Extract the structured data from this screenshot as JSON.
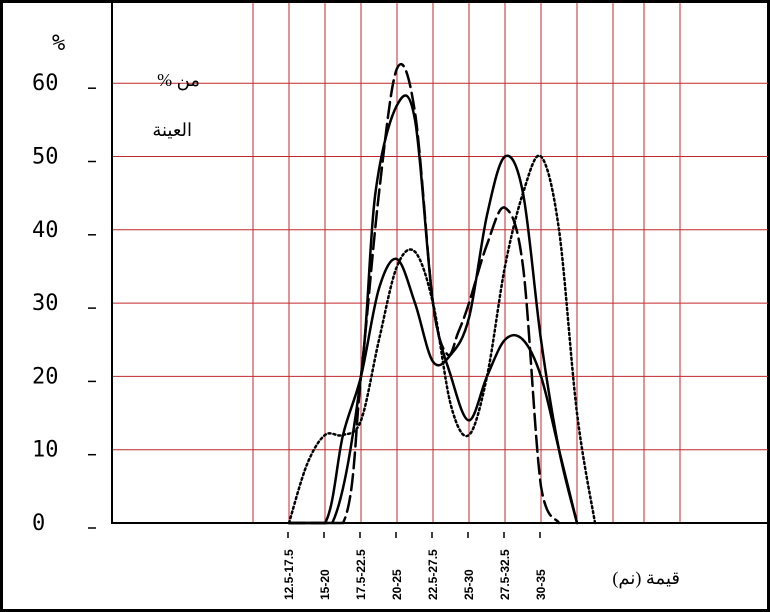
{
  "chart_data": {
    "type": "line",
    "x_categories": [
      "12.5-17.5",
      "15-20",
      "17.5-22.5",
      "20-25",
      "22.5-27.5",
      "25-30",
      "27.5-32.5",
      "30-35"
    ],
    "y_unit": "%",
    "y_ticks": [
      0,
      10,
      20,
      30,
      40,
      50,
      60
    ],
    "ylim": [
      0,
      65
    ],
    "ylabel_lines": [
      "% من",
      "العينة"
    ],
    "xlabel": "قيمة (نم)",
    "grid": true,
    "colors": {
      "grid": "#c0282d",
      "axis": "#000000",
      "curves": "#000000"
    },
    "series": [
      {
        "style": "solid",
        "x": [
          0.0,
          1.0,
          1.5,
          2.0,
          2.5,
          3.0,
          3.5,
          4.0,
          4.5,
          5.0,
          5.5,
          6.0,
          6.5,
          7.0,
          7.5,
          8.0
        ],
        "y": [
          0,
          0,
          12,
          20,
          32,
          36,
          30,
          22,
          23,
          28,
          42,
          50,
          45,
          25,
          10,
          0
        ]
      },
      {
        "style": "dashed",
        "x": [
          0.0,
          1.5,
          2.0,
          2.5,
          3.0,
          3.5,
          4.0,
          4.4,
          4.7,
          5.0,
          5.5,
          6.0,
          6.5,
          7.0,
          7.5
        ],
        "y": [
          0,
          0,
          20,
          45,
          62,
          56,
          30,
          23,
          26,
          30,
          38,
          43,
          35,
          5,
          0
        ]
      },
      {
        "style": "solid",
        "x": [
          0.0,
          1.2,
          2.0,
          2.4,
          3.0,
          3.5,
          4.0,
          4.5,
          5.0,
          5.5,
          6.0,
          6.5,
          7.0,
          7.5,
          8.0
        ],
        "y": [
          0,
          0,
          20,
          45,
          57,
          55,
          30,
          20,
          14,
          20,
          25,
          25,
          20,
          10,
          0
        ]
      },
      {
        "style": "dotted",
        "x": [
          0.0,
          0.5,
          1.0,
          1.5,
          2.0,
          2.5,
          3.0,
          3.5,
          4.0,
          4.5,
          5.0,
          5.5,
          6.0,
          6.5,
          7.0,
          7.5,
          8.0,
          8.5
        ],
        "y": [
          0,
          8,
          12,
          12,
          14,
          25,
          35,
          37,
          30,
          16,
          12,
          20,
          35,
          45,
          50,
          40,
          15,
          0
        ]
      }
    ]
  }
}
